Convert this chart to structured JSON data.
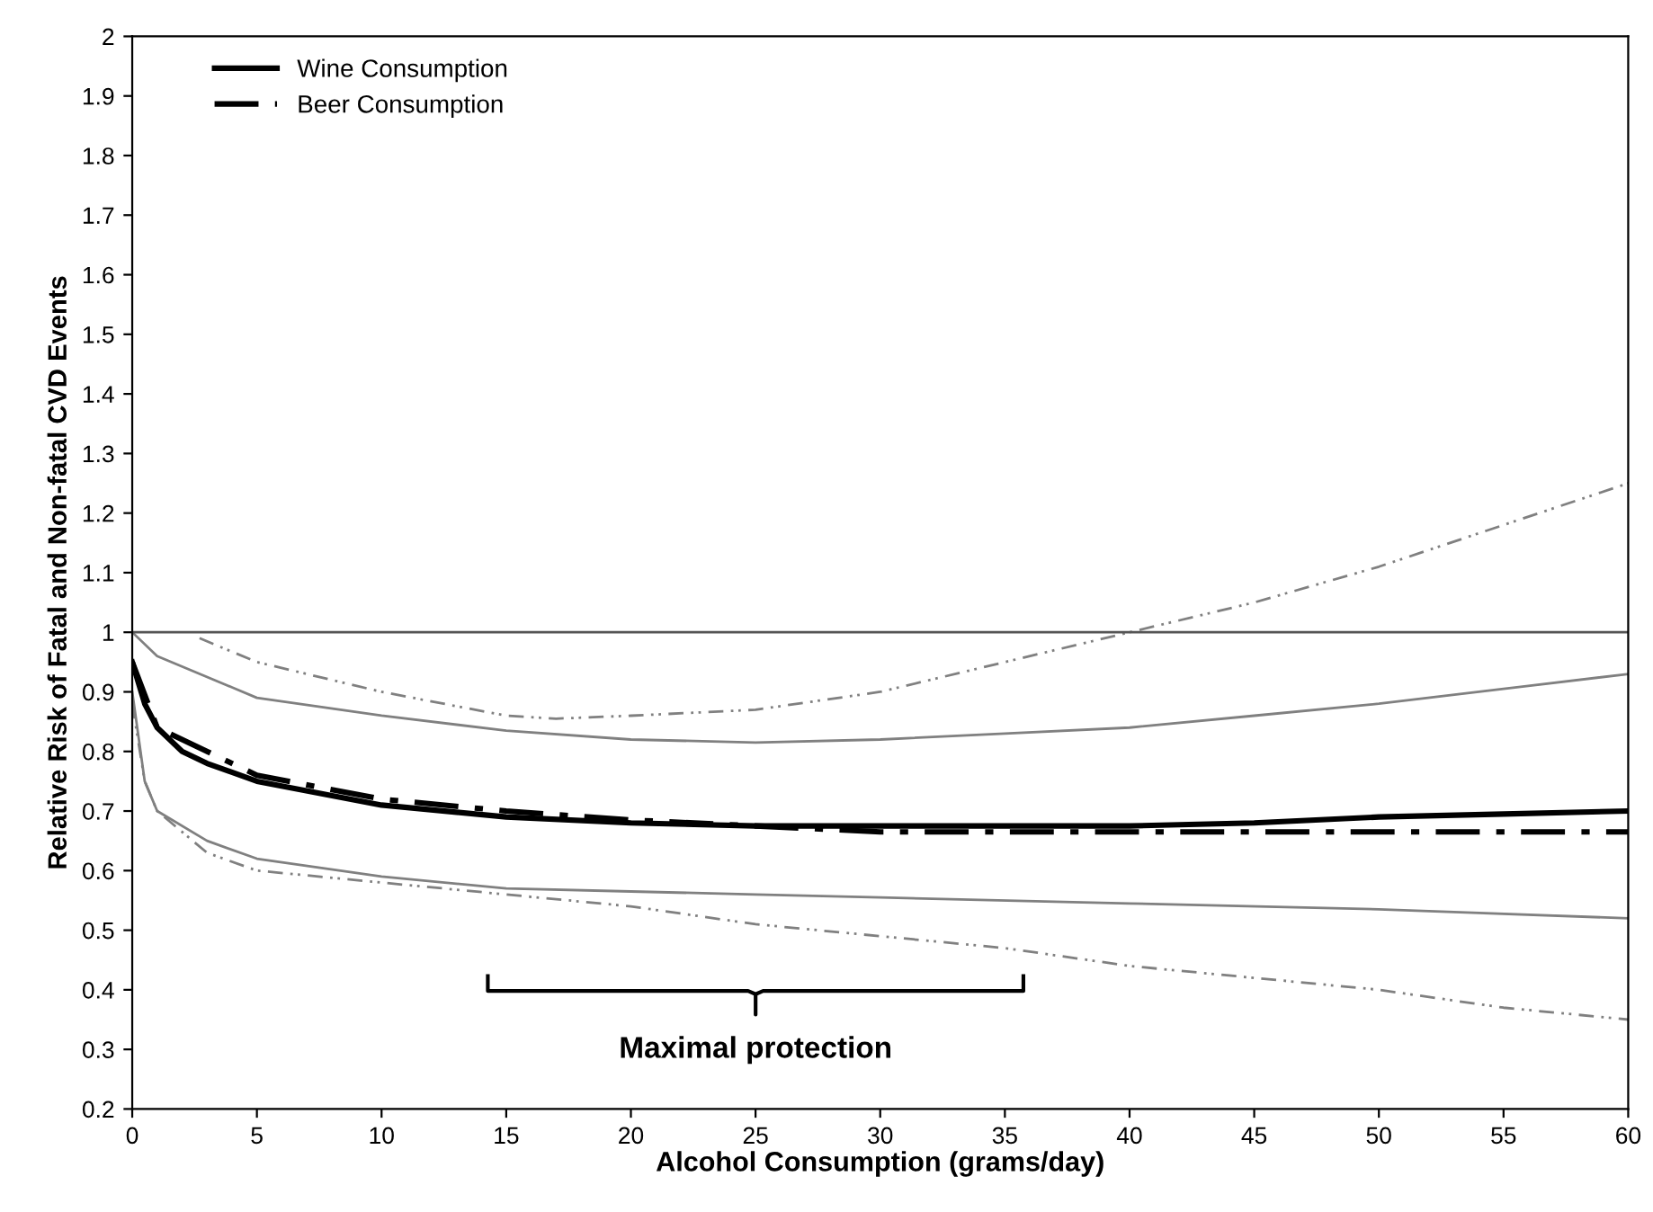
{
  "chart_data": {
    "type": "line",
    "xlabel": "Alcohol Consumption (grams/day)",
    "ylabel": "Relative Risk of Fatal and Non-fatal CVD Events",
    "series": [
      {
        "name": "Wine Consumption",
        "color": "#000000",
        "line_style": "solid",
        "x": [
          0,
          0.5,
          1,
          2,
          3,
          5,
          10,
          15,
          20,
          25,
          30,
          35,
          40,
          45,
          50,
          55,
          60
        ],
        "values": [
          0.95,
          0.88,
          0.84,
          0.8,
          0.78,
          0.75,
          0.71,
          0.69,
          0.68,
          0.675,
          0.675,
          0.675,
          0.675,
          0.68,
          0.69,
          0.695,
          0.7
        ]
      },
      {
        "name": "Beer Consumption",
        "color": "#000000",
        "line_style": "dashdot",
        "x": [
          0,
          1,
          3,
          5,
          10,
          15,
          20,
          25,
          30,
          40,
          50,
          60
        ],
        "values": [
          0.95,
          0.84,
          0.8,
          0.76,
          0.72,
          0.7,
          0.685,
          0.675,
          0.665,
          0.665,
          0.665,
          0.665
        ]
      },
      {
        "color": "#808080",
        "line_style": "solid",
        "x": [
          0,
          1,
          5,
          10,
          15,
          20,
          25,
          30,
          35,
          40,
          45,
          50,
          55,
          60
        ],
        "values": [
          1.0,
          0.96,
          0.89,
          0.86,
          0.835,
          0.82,
          0.815,
          0.82,
          0.83,
          0.84,
          0.86,
          0.88,
          0.905,
          0.93
        ]
      },
      {
        "color": "#808080",
        "line_style": "solid",
        "x": [
          0,
          0.5,
          1,
          3,
          5,
          10,
          15,
          20,
          25,
          30,
          40,
          50,
          60
        ],
        "values": [
          0.9,
          0.75,
          0.7,
          0.65,
          0.62,
          0.59,
          0.57,
          0.565,
          0.56,
          0.555,
          0.545,
          0.535,
          0.52
        ]
      },
      {
        "color": "#808080",
        "line_style": "dashdotdot",
        "x": [
          2.7,
          5,
          10,
          15,
          17,
          20,
          25,
          30,
          35,
          40,
          45,
          50,
          55,
          60
        ],
        "values": [
          0.99,
          0.95,
          0.9,
          0.86,
          0.855,
          0.86,
          0.87,
          0.9,
          0.95,
          1.0,
          1.05,
          1.11,
          1.18,
          1.25
        ]
      },
      {
        "color": "#808080",
        "line_style": "dashdotdot",
        "x": [
          0,
          0.5,
          1,
          3,
          5,
          10,
          15,
          20,
          25,
          30,
          35,
          40,
          45,
          50,
          55,
          60
        ],
        "values": [
          0.88,
          0.75,
          0.7,
          0.63,
          0.6,
          0.58,
          0.56,
          0.54,
          0.51,
          0.49,
          0.47,
          0.44,
          0.42,
          0.4,
          0.37,
          0.35
        ]
      }
    ],
    "ref_lines": [
      {
        "axis": "y",
        "value": 1,
        "color": "#555555"
      }
    ],
    "annotations": [
      "Maximal protection"
    ],
    "xlim": [
      0,
      60
    ],
    "xticks": [
      0,
      5,
      10,
      15,
      20,
      25,
      30,
      35,
      40,
      45,
      50,
      55,
      60
    ],
    "ylim": [
      0.2,
      2
    ],
    "yticks": [
      0.2,
      0.3,
      0.4,
      0.5,
      0.6,
      0.7,
      0.8,
      0.9,
      1,
      1.1,
      1.2,
      1.3,
      1.4,
      1.5,
      1.6,
      1.7,
      1.8,
      1.9,
      2
    ],
    "grid": false,
    "legend": "top left",
    "marker": "none"
  }
}
